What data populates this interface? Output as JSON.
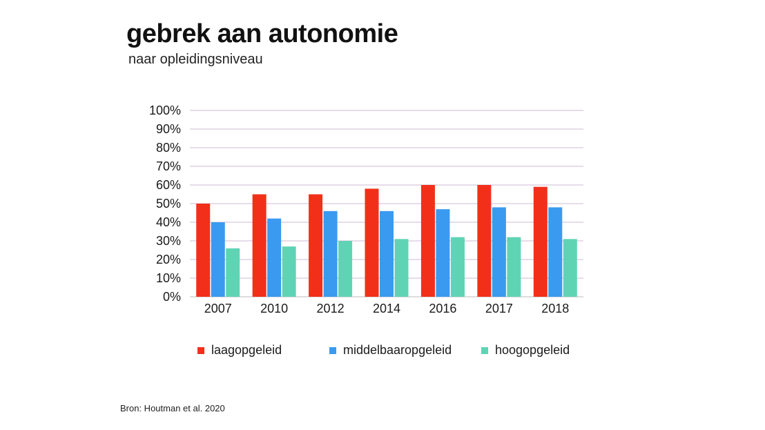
{
  "header": {
    "title": "gebrek aan autonomie",
    "subtitle": "naar opleidingsniveau"
  },
  "source": "Bron: Houtman et al. 2020",
  "colors": {
    "laag": "#f2301a",
    "middel": "#3a9af0",
    "hoog": "#5fd4b5",
    "grid": "#cdb9d6",
    "axis": "#bbbbbb"
  },
  "chart_data": {
    "type": "bar",
    "title": "gebrek aan autonomie",
    "subtitle": "naar opleidingsniveau",
    "xlabel": "",
    "ylabel": "",
    "ylim": [
      0,
      100
    ],
    "y_ticks": [
      "0%",
      "10%",
      "20%",
      "30%",
      "40%",
      "50%",
      "60%",
      "70%",
      "80%",
      "90%",
      "100%"
    ],
    "grid": true,
    "legend_position": "bottom",
    "categories": [
      "2007",
      "2010",
      "2012",
      "2014",
      "2016",
      "2017",
      "2018"
    ],
    "series": [
      {
        "name": "laagopgeleid",
        "color_key": "laag",
        "values": [
          50,
          55,
          55,
          58,
          60,
          60,
          59
        ]
      },
      {
        "name": "middelbaaropgeleid",
        "color_key": "middel",
        "values": [
          40,
          42,
          46,
          46,
          47,
          48,
          48
        ]
      },
      {
        "name": "hoogopgeleid",
        "color_key": "hoog",
        "values": [
          26,
          27,
          30,
          31,
          32,
          32,
          31
        ]
      }
    ]
  }
}
